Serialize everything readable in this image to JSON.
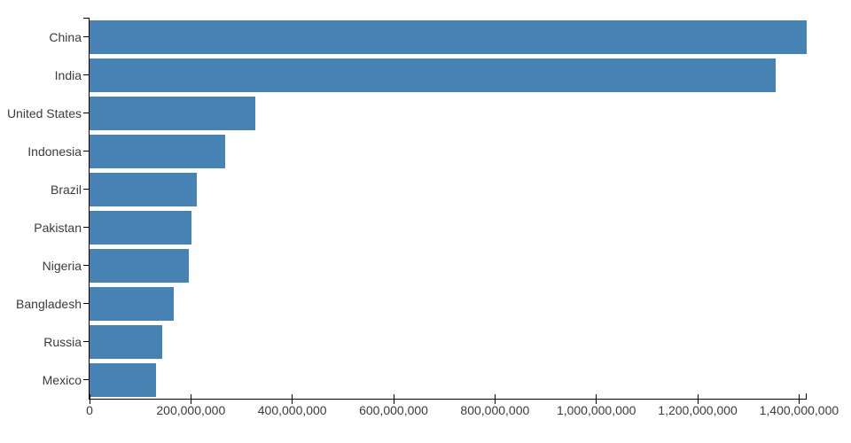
{
  "chart_data": {
    "type": "bar",
    "orientation": "horizontal",
    "title": "",
    "xlabel": "",
    "ylabel": "",
    "categories": [
      "China",
      "India",
      "United States",
      "Indonesia",
      "Brazil",
      "Pakistan",
      "Nigeria",
      "Bangladesh",
      "Russia",
      "Mexico"
    ],
    "values": [
      1415045928,
      1354051854,
      326766748,
      266794980,
      210867954,
      200813818,
      195875237,
      166368149,
      143964709,
      130759074
    ],
    "xlim": [
      0,
      1415045928
    ],
    "x_ticks": [
      {
        "value": 0,
        "label": "0"
      },
      {
        "value": 200000000,
        "label": "200,000,000"
      },
      {
        "value": 400000000,
        "label": "400,000,000"
      },
      {
        "value": 600000000,
        "label": "600,000,000"
      },
      {
        "value": 800000000,
        "label": "800,000,000"
      },
      {
        "value": 1000000000,
        "label": "1,000,000,000"
      },
      {
        "value": 1200000000,
        "label": "1,200,000,000"
      },
      {
        "value": 1400000000,
        "label": "1,400,000,000"
      }
    ],
    "grid": false,
    "legend": null,
    "colors": {
      "bar": "#4682b4",
      "axis": "#000000",
      "text": "#3b3b3b"
    }
  }
}
